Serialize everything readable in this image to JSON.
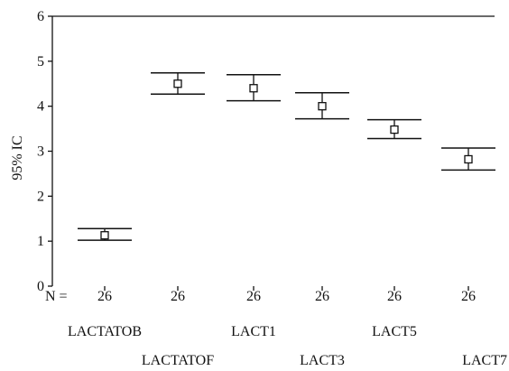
{
  "chart_data": {
    "type": "errorbar",
    "ylabel": "95% IC",
    "ylim": [
      0,
      6
    ],
    "yticks": [
      "0",
      "1",
      "2",
      "3",
      "4",
      "5",
      "6"
    ],
    "n_prefix": "N =",
    "categories": [
      "LACTATOB",
      "LACTATOF",
      "LACT1",
      "LACT3",
      "LACT5",
      "LACT7"
    ],
    "n_values": [
      "26",
      "26",
      "26",
      "26",
      "26",
      "26"
    ],
    "means": [
      1.13,
      4.5,
      4.4,
      4.0,
      3.48,
      2.82
    ],
    "lower": [
      1.02,
      4.27,
      4.12,
      3.72,
      3.28,
      2.58
    ],
    "upper": [
      1.28,
      4.74,
      4.7,
      4.3,
      3.7,
      3.07
    ],
    "grid": false,
    "colors": {
      "line": "#111111"
    }
  }
}
